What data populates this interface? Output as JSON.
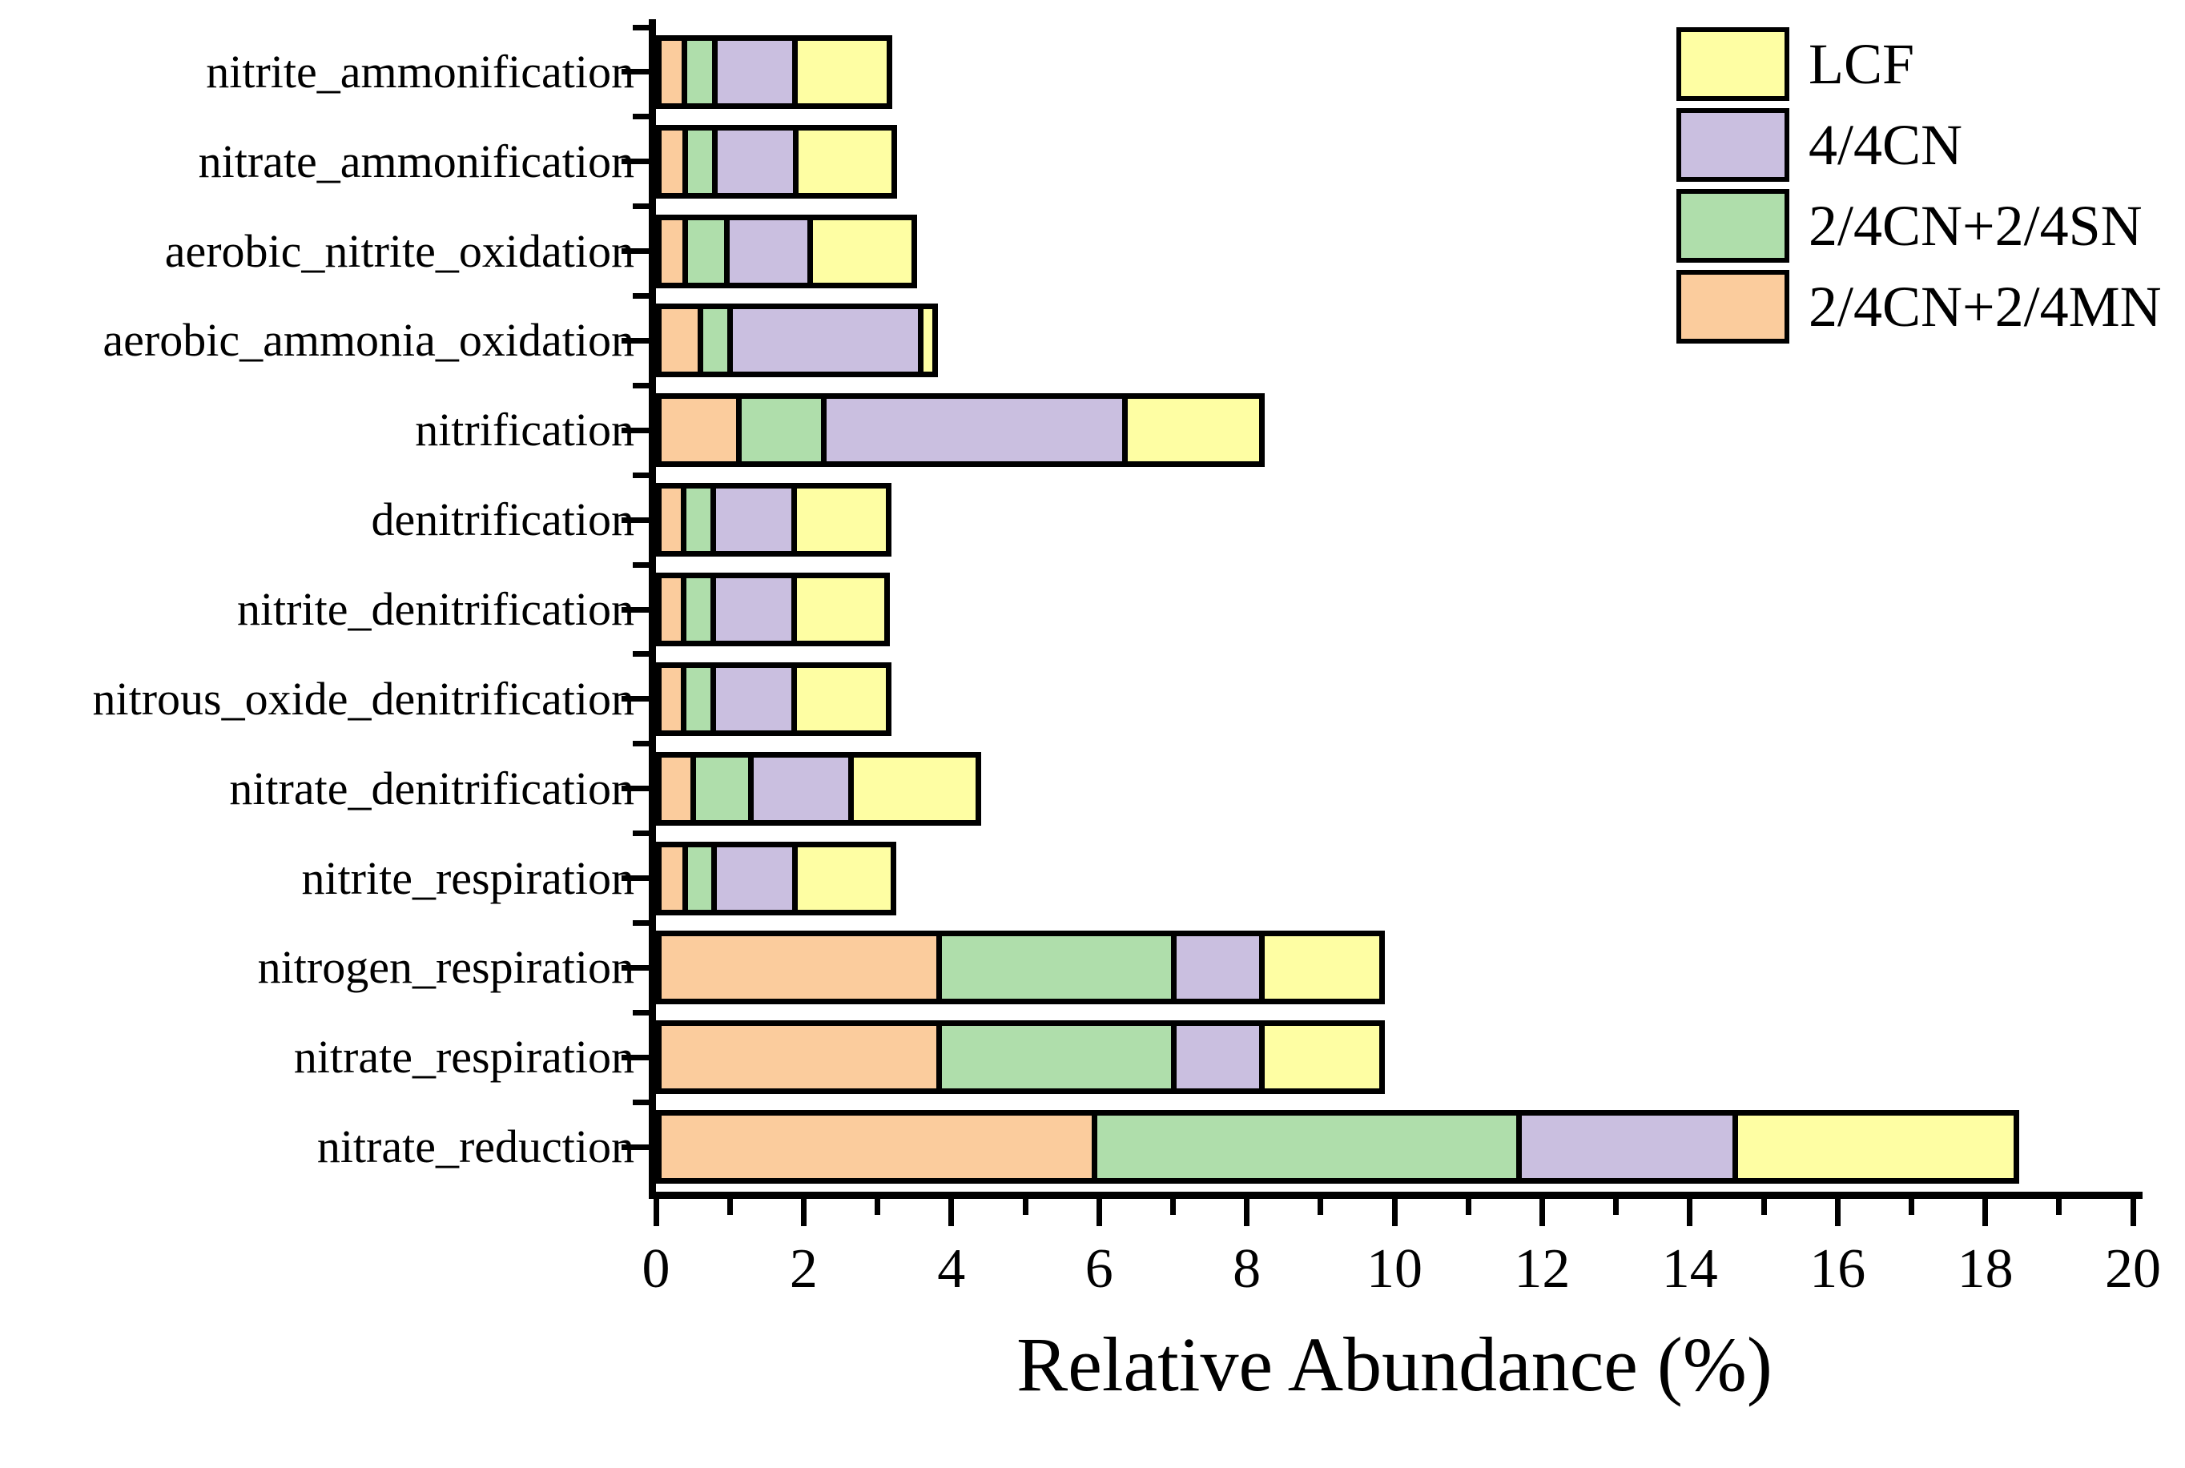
{
  "chart_data": {
    "type": "bar",
    "orientation": "horizontal",
    "stacked": true,
    "xlabel": "Relative Abundance (%)",
    "ylabel": "",
    "xlim": [
      0,
      20
    ],
    "x_major_tick_step": 2,
    "x_minor_tick_step": 1,
    "x_major_tick_labels": [
      "0",
      "2",
      "4",
      "6",
      "8",
      "10",
      "12",
      "14",
      "16",
      "18",
      "20"
    ],
    "grid": false,
    "legend_position": "upper right",
    "categories": [
      "nitrite_ammonification",
      "nitrate_ammonification",
      "aerobic_nitrite_oxidation",
      "aerobic_ammonia_oxidation",
      "nitrification",
      "denitrification",
      "nitrite_denitrification",
      "nitrous_oxide_denitrification",
      "nitrate_denitrification",
      "nitrite_respiration",
      "nitrogen_respiration",
      "nitrate_respiration",
      "nitrate_reduction"
    ],
    "series": [
      {
        "name": "2/4CN+2/4MN",
        "color": "#FBCC9D",
        "values": [
          0.37,
          0.37,
          0.37,
          0.59,
          1.1,
          0.35,
          0.35,
          0.35,
          0.48,
          0.37,
          3.86,
          3.86,
          5.95
        ]
      },
      {
        "name": "2/4CN+2/4SN",
        "color": "#AFDEAB",
        "values": [
          0.43,
          0.43,
          0.59,
          0.41,
          1.18,
          0.43,
          0.43,
          0.43,
          0.81,
          0.42,
          3.22,
          3.22,
          5.8
        ]
      },
      {
        "name": "4/4CN",
        "color": "#CABFE0",
        "values": [
          1.14,
          1.15,
          1.18,
          2.69,
          4.15,
          1.15,
          1.15,
          1.15,
          1.41,
          1.14,
          1.22,
          1.22,
          2.95
        ]
      },
      {
        "name": "LCF",
        "color": "#FEFEA3",
        "values": [
          1.26,
          1.31,
          1.4,
          0.13,
          1.81,
          1.26,
          1.24,
          1.26,
          1.7,
          1.32,
          1.57,
          1.57,
          3.76
        ]
      }
    ],
    "legend_items": [
      {
        "label": "LCF",
        "color": "#FEFEA3"
      },
      {
        "label": "4/4CN",
        "color": "#CABFE0"
      },
      {
        "label": "2/4CN+2/4SN",
        "color": "#AFDEAB"
      },
      {
        "label": "2/4CN+2/4MN",
        "color": "#FBCC9D"
      }
    ]
  }
}
